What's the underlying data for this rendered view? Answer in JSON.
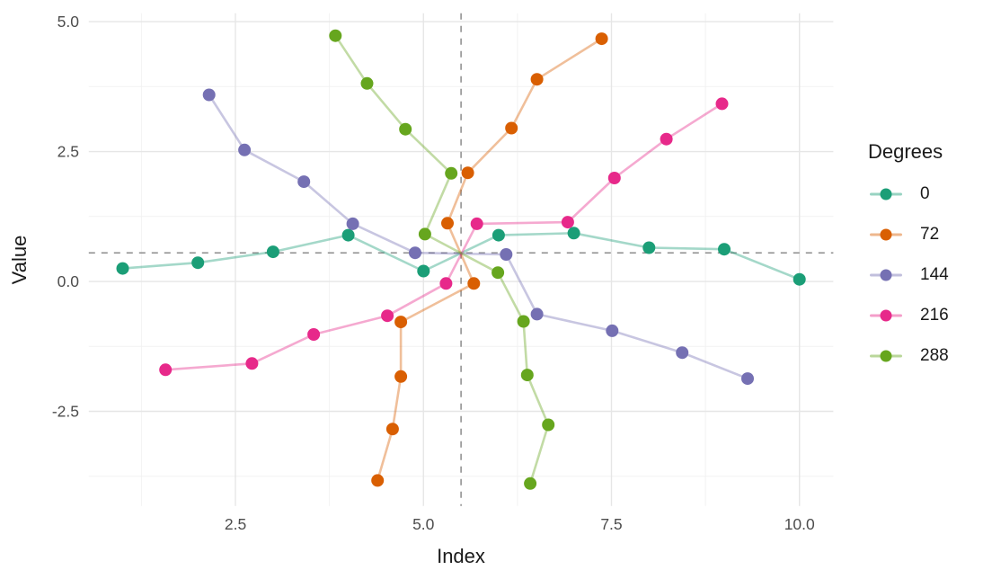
{
  "chart_data": {
    "type": "line",
    "title": "",
    "xlabel": "Index",
    "ylabel": "Value",
    "legend_title": "Degrees",
    "legend_position": "right",
    "grid": true,
    "xlim": [
      0.55,
      10.45
    ],
    "ylim": [
      -4.32,
      5.16
    ],
    "x_ticks": [
      2.5,
      5.0,
      7.5,
      10.0
    ],
    "y_ticks": [
      5.0,
      2.5,
      0.0,
      -2.5
    ],
    "x_minor_ticks": [
      1.25,
      3.75,
      6.25,
      8.75
    ],
    "y_minor_ticks": [
      3.75,
      1.25,
      -1.25,
      -3.75
    ],
    "reference_lines": {
      "vline_x": 5.5,
      "hline_y": 0.55,
      "style": "dashed",
      "color": "#8c8c8c"
    },
    "series": [
      {
        "name": "0",
        "color": "#1B9E77",
        "points": [
          [
            1,
            0.25
          ],
          [
            2,
            0.36
          ],
          [
            3,
            0.57
          ],
          [
            4,
            0.89
          ],
          [
            5,
            0.2
          ],
          [
            6,
            0.89
          ],
          [
            7,
            0.93
          ],
          [
            8,
            0.65
          ],
          [
            9,
            0.62
          ],
          [
            10,
            0.04
          ]
        ]
      },
      {
        "name": "72",
        "color": "#D95F02",
        "points": [
          [
            4.39,
            -3.83
          ],
          [
            4.59,
            -2.84
          ],
          [
            4.7,
            -1.83
          ],
          [
            4.7,
            -0.78
          ],
          [
            5.67,
            -0.04
          ],
          [
            5.32,
            1.12
          ],
          [
            5.59,
            2.09
          ],
          [
            6.17,
            2.95
          ],
          [
            6.51,
            3.89
          ],
          [
            7.37,
            4.67
          ]
        ]
      },
      {
        "name": "144",
        "color": "#7570B3",
        "points": [
          [
            9.31,
            -1.87
          ],
          [
            8.44,
            -1.37
          ],
          [
            7.51,
            -0.95
          ],
          [
            6.51,
            -0.63
          ],
          [
            6.1,
            0.52
          ],
          [
            4.89,
            0.55
          ],
          [
            4.06,
            1.11
          ],
          [
            3.41,
            1.92
          ],
          [
            2.62,
            2.53
          ],
          [
            2.15,
            3.59
          ]
        ]
      },
      {
        "name": "216",
        "color": "#E7298A",
        "points": [
          [
            8.97,
            3.42
          ],
          [
            8.23,
            2.74
          ],
          [
            7.54,
            1.99
          ],
          [
            6.92,
            1.14
          ],
          [
            5.71,
            1.11
          ],
          [
            5.3,
            -0.04
          ],
          [
            4.52,
            -0.66
          ],
          [
            3.54,
            -1.02
          ],
          [
            2.72,
            -1.58
          ],
          [
            1.57,
            -1.7
          ]
        ]
      },
      {
        "name": "288",
        "color": "#66A61E",
        "points": [
          [
            3.83,
            4.73
          ],
          [
            4.25,
            3.81
          ],
          [
            4.76,
            2.93
          ],
          [
            5.37,
            2.08
          ],
          [
            5.02,
            0.91
          ],
          [
            5.99,
            0.17
          ],
          [
            6.33,
            -0.77
          ],
          [
            6.38,
            -1.8
          ],
          [
            6.66,
            -2.76
          ],
          [
            6.42,
            -3.89
          ]
        ]
      }
    ]
  },
  "axes": {
    "x_tick_labels": [
      "2.5",
      "5.0",
      "7.5",
      "10.0"
    ],
    "y_tick_labels": [
      "5.0",
      "2.5",
      "0.0",
      "-2.5"
    ]
  },
  "legend": {
    "title": "Degrees",
    "items": [
      {
        "label": "0",
        "color": "#1B9E77"
      },
      {
        "label": "72",
        "color": "#D95F02"
      },
      {
        "label": "144",
        "color": "#7570B3"
      },
      {
        "label": "216",
        "color": "#E7298A"
      },
      {
        "label": "288",
        "color": "#66A61E"
      }
    ]
  },
  "style": {
    "major_grid_color": "#e6e6e6",
    "minor_grid_color": "#f2f2f2",
    "tick_label_color": "#4d4d4d",
    "line_opacity": 0.4,
    "point_radius": 7
  }
}
